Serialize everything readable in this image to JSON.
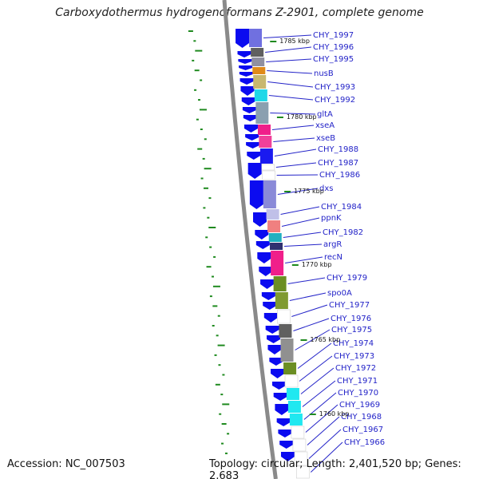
{
  "title": "Carboxydothermus hydrogenoformans Z-2901, complete genome",
  "accession": "Accession: NC_007503",
  "topology": "Topology: circular; Length: 2,401,520 bp; Genes: 2,683",
  "colors": {
    "forward_strand": "#0b0bf0",
    "leader": "#2323c8",
    "gc_ticks": "#1f8a1f",
    "backbone": "#8a8a8a"
  },
  "kbp_marks": [
    "1785 kbp",
    "1780 kbp",
    "1775 kbp",
    "1770 kbp",
    "1765 kbp",
    "1760 kbp"
  ],
  "genes": [
    {
      "label": "CHY_1997",
      "color": "#7070e0"
    },
    {
      "label": "CHY_1996",
      "color": "#606060"
    },
    {
      "label": "CHY_1995",
      "color": "#9090a0"
    },
    {
      "label": "nusB",
      "color": "#e08a1a"
    },
    {
      "label": "CHY_1993",
      "color": "#c8b870"
    },
    {
      "label": "CHY_1992",
      "color": "#20d8e8"
    },
    {
      "label": "gltA",
      "color": "#8aa0b0"
    },
    {
      "label": "xseA",
      "color": "#f01f8a"
    },
    {
      "label": "xseB",
      "color": "#f0409a"
    },
    {
      "label": "CHY_1988",
      "color": "#1a1af0"
    },
    {
      "label": "CHY_1987",
      "color": "#ffffff"
    },
    {
      "label": "CHY_1986",
      "color": "#ffffff"
    },
    {
      "label": "dxs",
      "color": "#8a8ad8"
    },
    {
      "label": "CHY_1984",
      "color": "#c0c0e8"
    },
    {
      "label": "ppnK",
      "color": "#f08080"
    },
    {
      "label": "CHY_1982",
      "color": "#20b0c0"
    },
    {
      "label": "argR",
      "color": "#303070"
    },
    {
      "label": "recN",
      "color": "#f01f8a"
    },
    {
      "label": "CHY_1979",
      "color": "#6b8e23"
    },
    {
      "label": "spo0A",
      "color": "#7f9a30"
    },
    {
      "label": "CHY_1977",
      "color": "#ffffff"
    },
    {
      "label": "CHY_1976",
      "color": "#606060"
    },
    {
      "label": "CHY_1975",
      "color": "#909090"
    },
    {
      "label": "CHY_1974",
      "color": "#6b8e23"
    },
    {
      "label": "CHY_1973",
      "color": "#ffffff"
    },
    {
      "label": "CHY_1972",
      "color": "#20e8f0"
    },
    {
      "label": "CHY_1971",
      "color": "#20e8f0"
    },
    {
      "label": "CHY_1970",
      "color": "#20e8f0"
    },
    {
      "label": "CHY_1969",
      "color": "#ffffff"
    },
    {
      "label": "CHY_1968",
      "color": "#ffffff"
    },
    {
      "label": "CHY_1967",
      "color": "#ffffff"
    },
    {
      "label": "CHY_1966",
      "color": "#ffffff"
    }
  ]
}
